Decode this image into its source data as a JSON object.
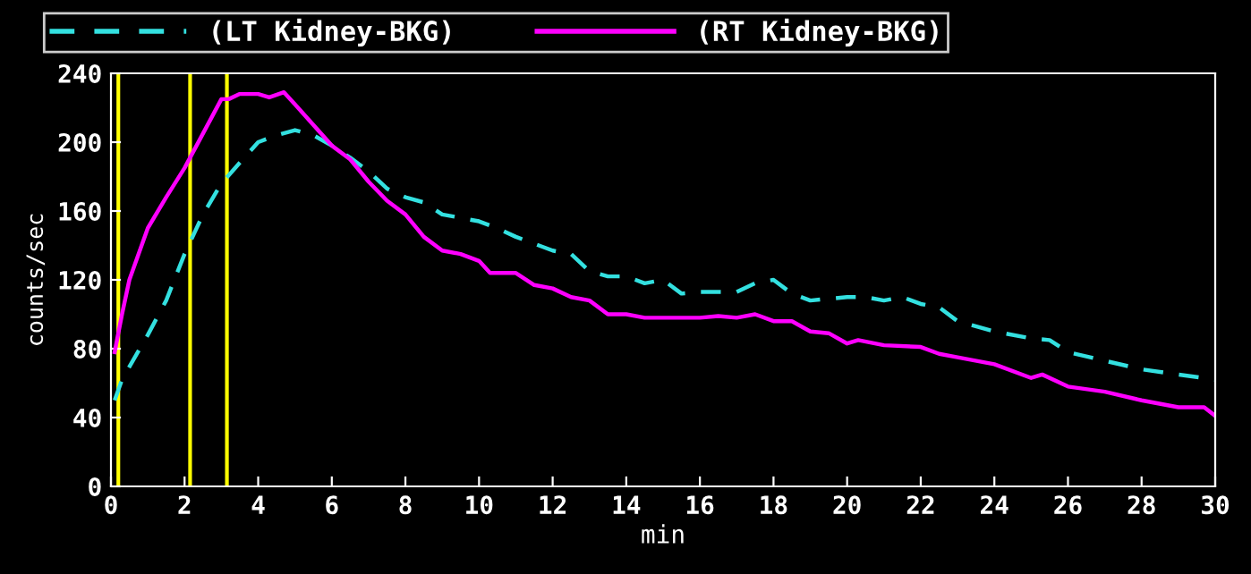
{
  "chart_data": {
    "type": "line",
    "xlabel": "min",
    "ylabel": "counts/sec",
    "xlim": [
      0,
      30
    ],
    "xticks": [
      0,
      2,
      4,
      6,
      8,
      10,
      12,
      14,
      16,
      18,
      20,
      22,
      24,
      26,
      28,
      30
    ],
    "ylim": [
      0,
      240
    ],
    "yticks": [
      0,
      40,
      80,
      120,
      160,
      200,
      240
    ],
    "grid": false,
    "legend": "top",
    "series": [
      {
        "name": "(LT Kidney-BKG)",
        "color": "#33e0e0",
        "line_style": "dashed",
        "x": [
          0.1,
          0.3,
          1,
          1.5,
          2,
          2.5,
          3,
          3.5,
          4,
          4.5,
          5,
          5.5,
          6,
          6.5,
          7,
          7.5,
          8,
          8.5,
          9,
          10,
          10.5,
          11,
          12,
          12.5,
          13,
          13.5,
          14,
          14.5,
          15,
          15.5,
          16,
          17,
          17.5,
          18,
          18.5,
          19,
          20,
          20.5,
          21,
          21.5,
          22,
          22.5,
          23,
          24,
          25,
          25.5,
          26,
          27,
          28,
          29,
          30
        ],
        "values": [
          50,
          62,
          88,
          108,
          135,
          158,
          176,
          188,
          200,
          204,
          207,
          204,
          198,
          191,
          183,
          173,
          168,
          165,
          158,
          154,
          150,
          145,
          137,
          135,
          125,
          122,
          122,
          118,
          120,
          112,
          113,
          113,
          118,
          120,
          112,
          108,
          110,
          110,
          108,
          110,
          106,
          104,
          96,
          90,
          86,
          85,
          78,
          73,
          68,
          65,
          62
        ]
      },
      {
        "name": "(RT Kidney-BKG)",
        "color": "#ff00ff",
        "line_style": "solid",
        "x": [
          0.1,
          0.3,
          0.5,
          1,
          1.5,
          2,
          2.5,
          3,
          3.2,
          3.5,
          4,
          4.3,
          4.7,
          5,
          5.5,
          6,
          6.5,
          7,
          7.5,
          8,
          8.5,
          9,
          9.5,
          10,
          10.3,
          11,
          11.5,
          12,
          12.5,
          13,
          13.5,
          14,
          14.5,
          15,
          16,
          16.5,
          17,
          17.5,
          18,
          18.5,
          19,
          19.5,
          20,
          20.3,
          21,
          22,
          22.5,
          23,
          24,
          25,
          25.3,
          26,
          27,
          28,
          29,
          29.7,
          30
        ],
        "values": [
          78,
          100,
          120,
          150,
          168,
          185,
          205,
          225,
          225,
          228,
          228,
          226,
          229,
          222,
          210,
          198,
          190,
          177,
          166,
          158,
          145,
          137,
          135,
          131,
          124,
          124,
          117,
          115,
          110,
          108,
          100,
          100,
          98,
          98,
          98,
          99,
          98,
          100,
          96,
          96,
          90,
          89,
          83,
          85,
          82,
          81,
          77,
          75,
          71,
          63,
          65,
          58,
          55,
          50,
          46,
          46,
          41
        ]
      }
    ],
    "ref_lines": [
      {
        "axis": "x",
        "value": 0.2,
        "color": "#ffff00"
      },
      {
        "axis": "x",
        "value": 2.15,
        "color": "#ffff00"
      },
      {
        "axis": "x",
        "value": 3.15,
        "color": "#ffff00"
      }
    ]
  }
}
